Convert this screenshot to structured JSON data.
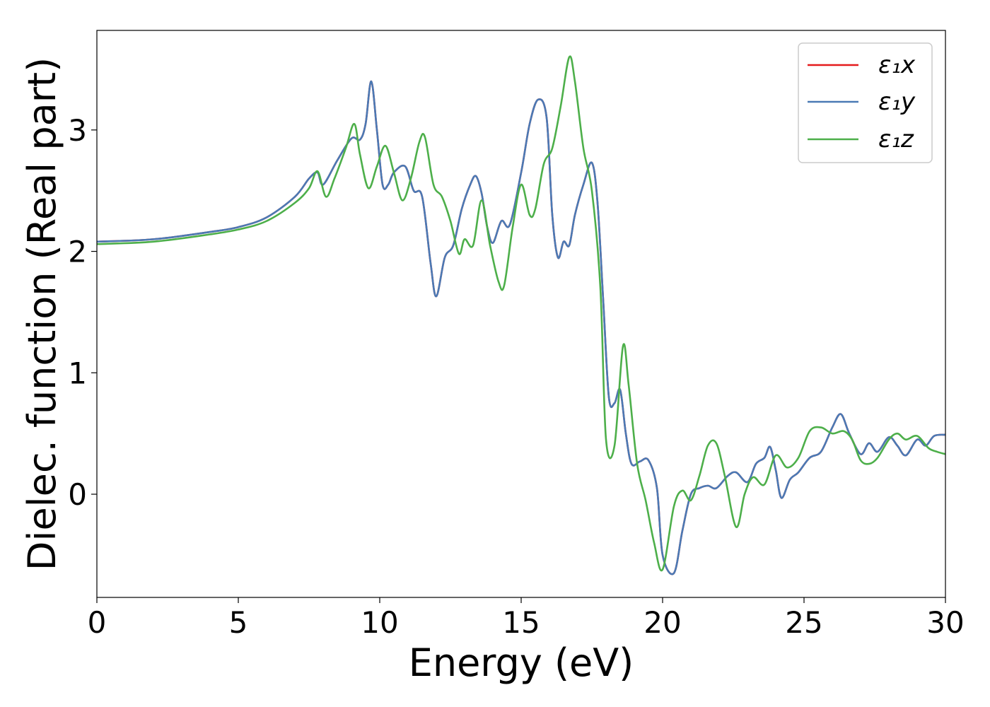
{
  "chart_data": {
    "type": "line",
    "xlabel": "Energy (eV)",
    "ylabel": "Dielec. function (Real part)",
    "xlim": [
      0,
      30
    ],
    "ylim": [
      -0.85,
      3.82
    ],
    "xticks": [
      0,
      5,
      10,
      15,
      20,
      25,
      30
    ],
    "yticks": [
      0,
      1,
      2,
      3
    ],
    "grid": false,
    "legend_position": "top-right",
    "series": [
      {
        "name": "ε₁x",
        "color": "#e41a1c",
        "x": [
          0,
          2,
          4,
          5,
          6,
          7,
          7.5,
          7.8,
          8,
          8.5,
          9,
          9.3,
          9.5,
          9.7,
          9.9,
          10.1,
          10.3,
          10.5,
          10.9,
          11.2,
          11.5,
          11.8,
          12.0,
          12.3,
          12.6,
          12.9,
          13.2,
          13.4,
          13.6,
          13.8,
          14.0,
          14.3,
          14.6,
          15.0,
          15.3,
          15.6,
          15.9,
          16.1,
          16.3,
          16.5,
          16.7,
          16.9,
          17.2,
          17.5,
          17.7,
          17.9,
          18.1,
          18.3,
          18.5,
          18.7,
          18.9,
          19.2,
          19.5,
          19.8,
          20.0,
          20.4,
          20.7,
          21.0,
          21.3,
          21.6,
          21.9,
          22.3,
          22.6,
          23.0,
          23.3,
          23.6,
          23.8,
          24.0,
          24.2,
          24.5,
          24.8,
          25.2,
          25.6,
          26.0,
          26.3,
          26.6,
          27.0,
          27.3,
          27.6,
          28.0,
          28.3,
          28.6,
          29.0,
          29.3,
          29.6,
          30.0
        ],
        "y": [
          2.08,
          2.1,
          2.16,
          2.2,
          2.28,
          2.45,
          2.6,
          2.65,
          2.55,
          2.75,
          2.93,
          2.92,
          3.05,
          3.4,
          3.0,
          2.55,
          2.55,
          2.65,
          2.7,
          2.5,
          2.45,
          1.9,
          1.63,
          1.95,
          2.05,
          2.35,
          2.55,
          2.62,
          2.48,
          2.2,
          2.07,
          2.25,
          2.22,
          2.65,
          3.05,
          3.25,
          3.1,
          2.3,
          1.95,
          2.08,
          2.05,
          2.3,
          2.55,
          2.73,
          2.4,
          1.6,
          0.8,
          0.75,
          0.86,
          0.5,
          0.25,
          0.27,
          0.28,
          0.05,
          -0.5,
          -0.65,
          -0.3,
          0.0,
          0.05,
          0.07,
          0.05,
          0.15,
          0.18,
          0.1,
          0.25,
          0.3,
          0.39,
          0.2,
          -0.03,
          0.12,
          0.18,
          0.3,
          0.35,
          0.55,
          0.66,
          0.5,
          0.33,
          0.42,
          0.35,
          0.47,
          0.4,
          0.32,
          0.45,
          0.4,
          0.48,
          0.49
        ]
      },
      {
        "name": "ε₁y",
        "color": "#4a7ab5",
        "x": [
          0,
          2,
          4,
          5,
          6,
          7,
          7.5,
          7.8,
          8,
          8.5,
          9,
          9.3,
          9.5,
          9.7,
          9.9,
          10.1,
          10.3,
          10.5,
          10.9,
          11.2,
          11.5,
          11.8,
          12.0,
          12.3,
          12.6,
          12.9,
          13.2,
          13.4,
          13.6,
          13.8,
          14.0,
          14.3,
          14.6,
          15.0,
          15.3,
          15.6,
          15.9,
          16.1,
          16.3,
          16.5,
          16.7,
          16.9,
          17.2,
          17.5,
          17.7,
          17.9,
          18.1,
          18.3,
          18.5,
          18.7,
          18.9,
          19.2,
          19.5,
          19.8,
          20.0,
          20.4,
          20.7,
          21.0,
          21.3,
          21.6,
          21.9,
          22.3,
          22.6,
          23.0,
          23.3,
          23.6,
          23.8,
          24.0,
          24.2,
          24.5,
          24.8,
          25.2,
          25.6,
          26.0,
          26.3,
          26.6,
          27.0,
          27.3,
          27.6,
          28.0,
          28.3,
          28.6,
          29.0,
          29.3,
          29.6,
          30.0
        ],
        "y": [
          2.08,
          2.1,
          2.16,
          2.2,
          2.28,
          2.45,
          2.6,
          2.65,
          2.55,
          2.75,
          2.93,
          2.92,
          3.05,
          3.4,
          3.0,
          2.55,
          2.55,
          2.65,
          2.7,
          2.5,
          2.45,
          1.9,
          1.63,
          1.95,
          2.05,
          2.35,
          2.55,
          2.62,
          2.48,
          2.2,
          2.07,
          2.25,
          2.22,
          2.65,
          3.05,
          3.25,
          3.1,
          2.3,
          1.95,
          2.08,
          2.05,
          2.3,
          2.55,
          2.73,
          2.4,
          1.6,
          0.8,
          0.75,
          0.86,
          0.5,
          0.25,
          0.27,
          0.28,
          0.05,
          -0.5,
          -0.65,
          -0.3,
          0.0,
          0.05,
          0.07,
          0.05,
          0.15,
          0.18,
          0.1,
          0.25,
          0.3,
          0.39,
          0.2,
          -0.03,
          0.12,
          0.18,
          0.3,
          0.35,
          0.55,
          0.66,
          0.5,
          0.33,
          0.42,
          0.35,
          0.47,
          0.4,
          0.32,
          0.45,
          0.4,
          0.48,
          0.49
        ]
      },
      {
        "name": "ε₁z",
        "color": "#4daf4a",
        "x": [
          0,
          2,
          4,
          5,
          6,
          7,
          7.5,
          7.8,
          8.1,
          8.4,
          8.8,
          9.1,
          9.3,
          9.6,
          9.9,
          10.2,
          10.5,
          10.8,
          11.1,
          11.4,
          11.6,
          11.9,
          12.2,
          12.5,
          12.8,
          13.0,
          13.3,
          13.6,
          13.9,
          14.2,
          14.4,
          14.7,
          15.0,
          15.3,
          15.5,
          15.8,
          16.1,
          16.4,
          16.7,
          16.9,
          17.2,
          17.5,
          17.8,
          18.0,
          18.3,
          18.6,
          18.8,
          19.1,
          19.4,
          19.7,
          20.0,
          20.4,
          20.7,
          21.0,
          21.3,
          21.6,
          21.9,
          22.2,
          22.6,
          22.9,
          23.2,
          23.6,
          24.0,
          24.4,
          24.8,
          25.2,
          25.6,
          26.0,
          26.4,
          26.7,
          27.0,
          27.3,
          27.6,
          28.0,
          28.3,
          28.6,
          29.0,
          29.4,
          29.7,
          30.0
        ],
        "y": [
          2.06,
          2.08,
          2.14,
          2.18,
          2.25,
          2.4,
          2.52,
          2.66,
          2.45,
          2.6,
          2.85,
          3.05,
          2.8,
          2.52,
          2.7,
          2.87,
          2.65,
          2.42,
          2.6,
          2.9,
          2.94,
          2.55,
          2.45,
          2.25,
          1.98,
          2.1,
          2.05,
          2.42,
          2.05,
          1.75,
          1.72,
          2.2,
          2.55,
          2.3,
          2.35,
          2.72,
          2.85,
          3.2,
          3.6,
          3.4,
          2.85,
          2.5,
          1.7,
          0.45,
          0.4,
          1.22,
          0.9,
          0.25,
          -0.05,
          -0.4,
          -0.62,
          -0.1,
          0.03,
          -0.05,
          0.15,
          0.4,
          0.42,
          0.15,
          -0.27,
          0.0,
          0.14,
          0.08,
          0.32,
          0.22,
          0.3,
          0.52,
          0.55,
          0.5,
          0.52,
          0.45,
          0.28,
          0.25,
          0.3,
          0.45,
          0.5,
          0.45,
          0.48,
          0.38,
          0.35,
          0.33
        ]
      }
    ]
  }
}
